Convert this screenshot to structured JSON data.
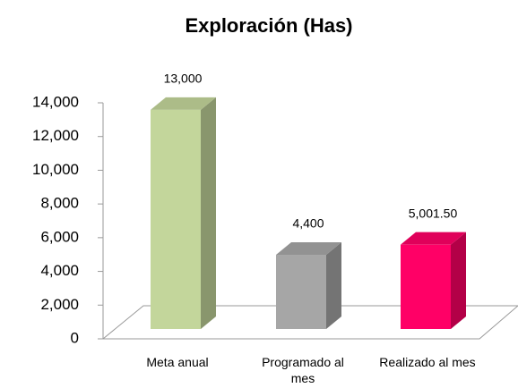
{
  "chart_data": {
    "type": "bar3d",
    "title": "Exploración (Has)",
    "categories": [
      "Meta anual",
      "Programado al mes",
      "Realizado al mes"
    ],
    "values": [
      13000,
      4400,
      5001.5
    ],
    "value_labels": [
      "13,000",
      "4,400",
      "5,001.50"
    ],
    "colors": [
      "#c3d69b",
      "#a6a6a6",
      "#ff0066"
    ],
    "ylim": [
      0,
      14000
    ],
    "yticks": [
      0,
      {
        "value": 2000,
        "label": "2,000"
      },
      {
        "value": 4000,
        "label": "4,000"
      },
      {
        "value": 6000,
        "label": "6,000"
      },
      {
        "value": 8000,
        "label": "8,000"
      },
      {
        "value": 10000,
        "label": "10,000"
      },
      {
        "value": 12000,
        "label": "12,000"
      },
      {
        "value": 14000,
        "label": "14,000"
      }
    ]
  }
}
